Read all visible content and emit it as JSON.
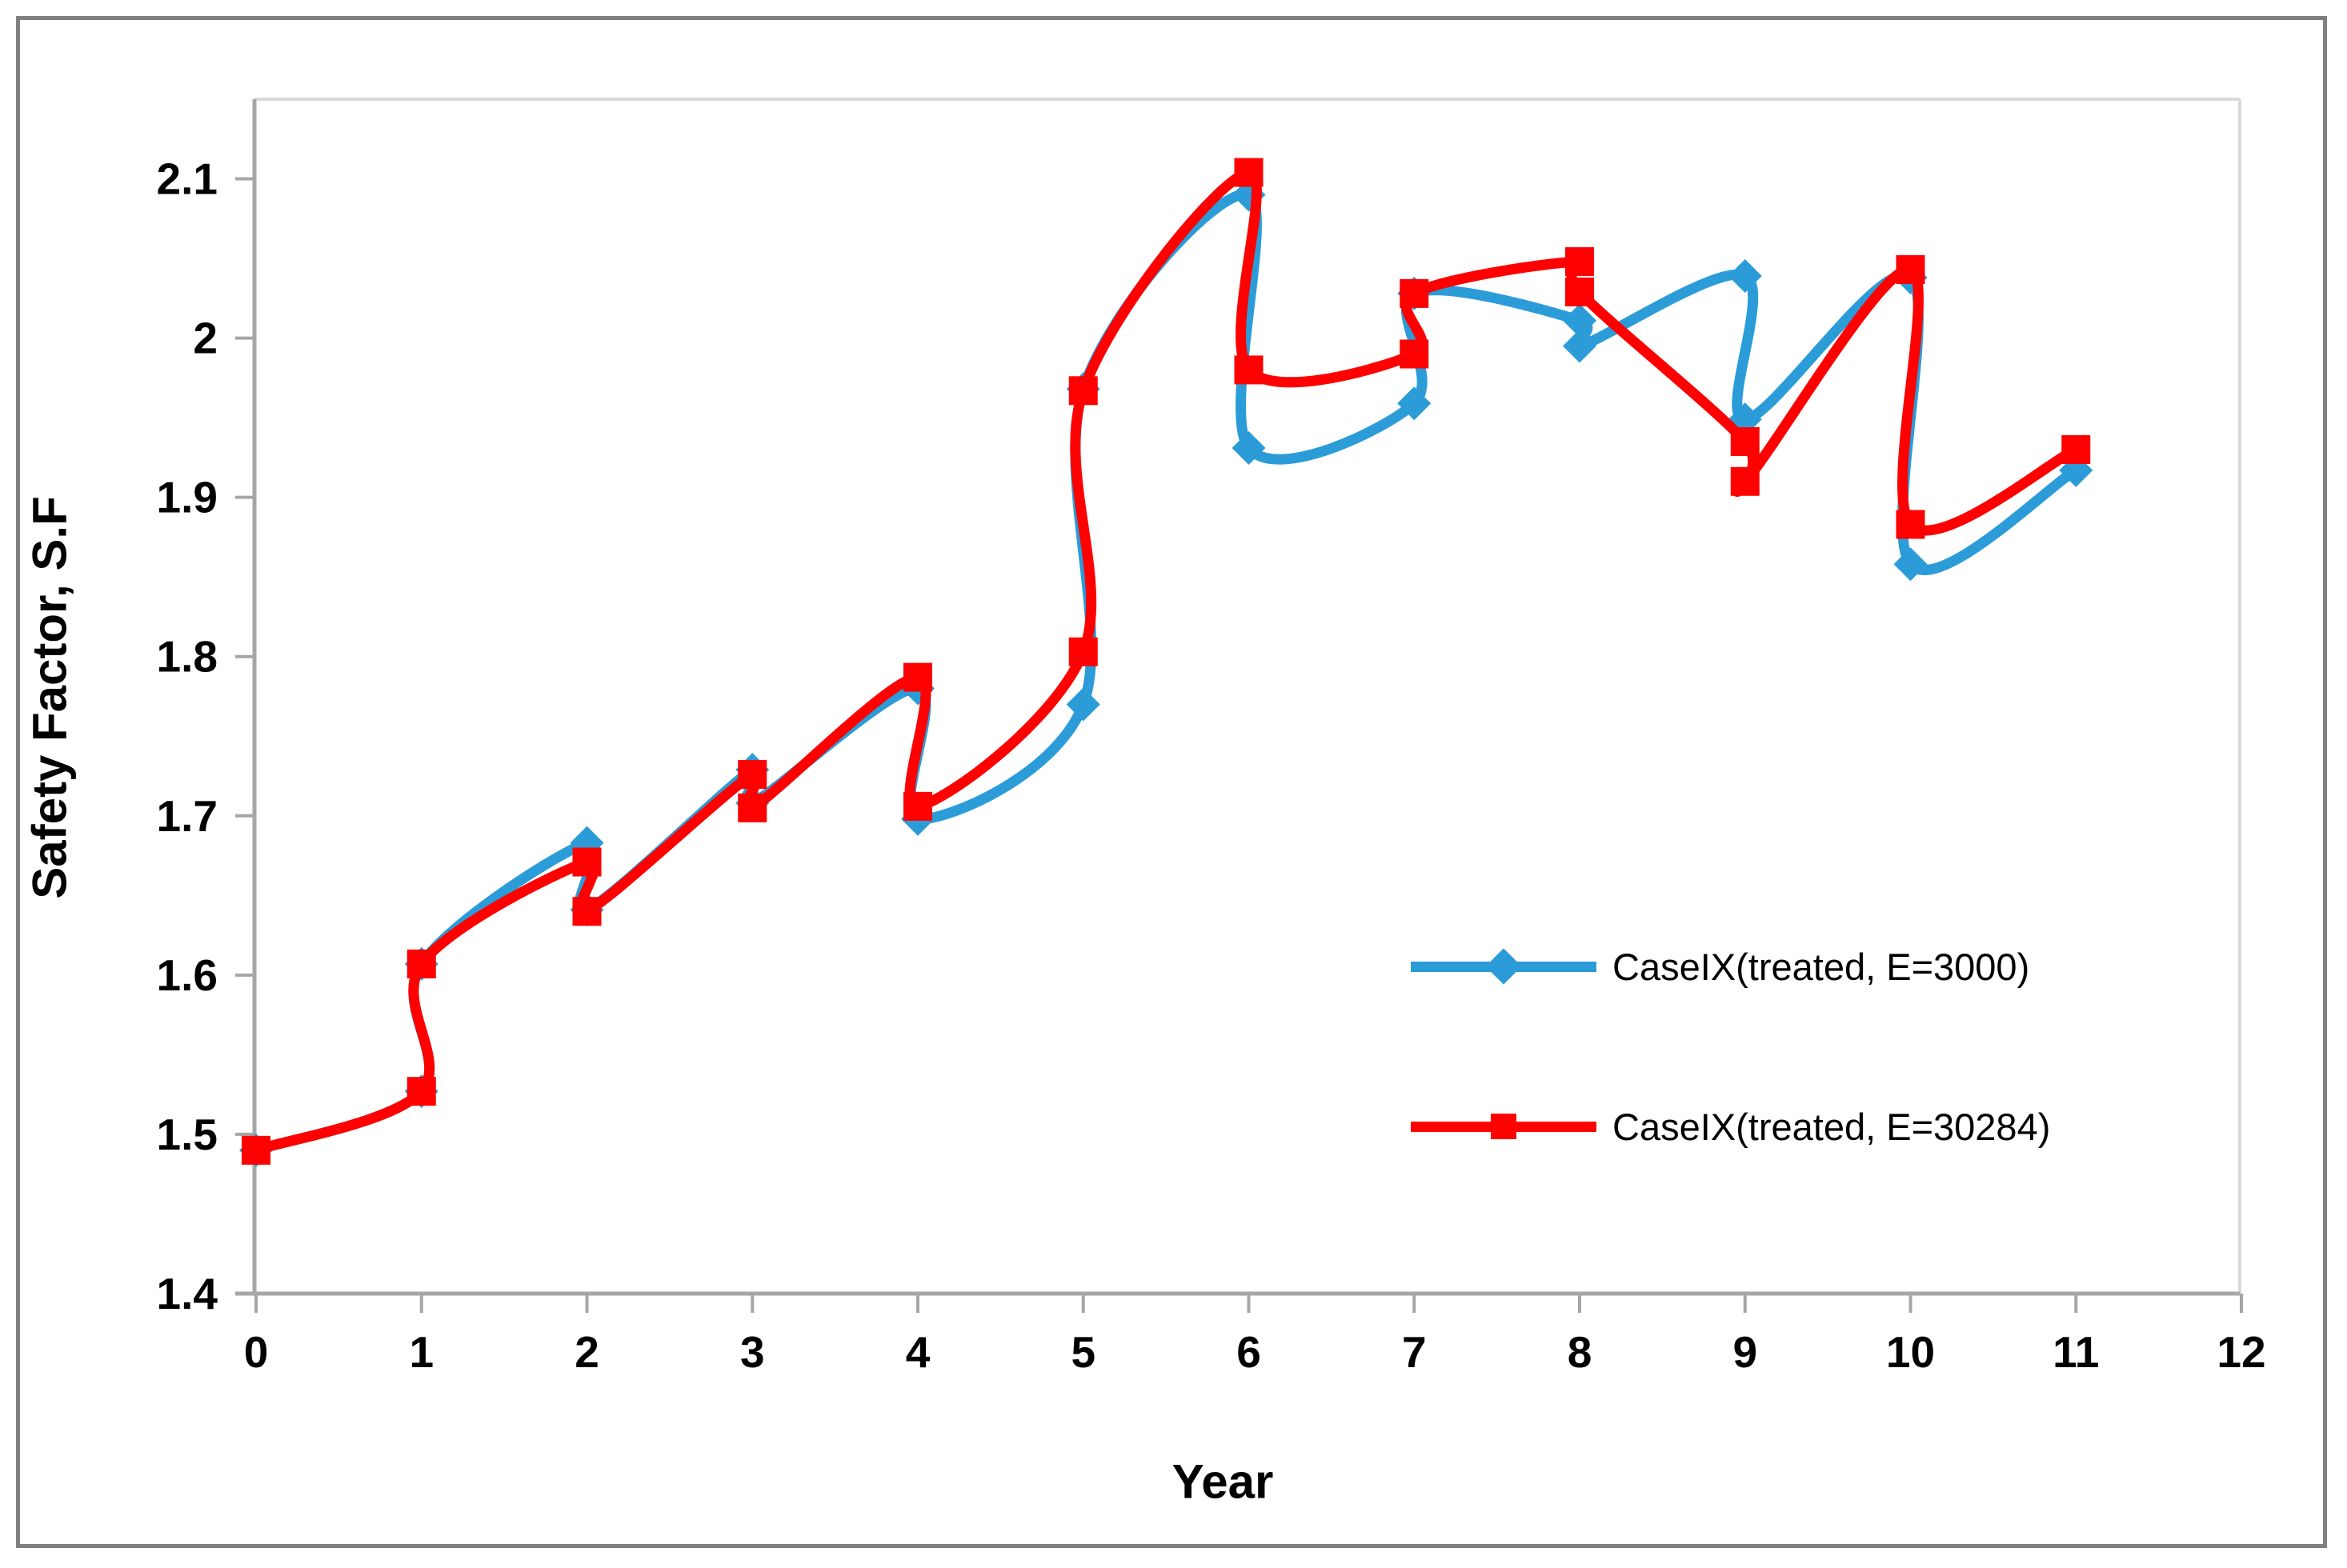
{
  "frame": {
    "border_color": "#808080"
  },
  "styles": {
    "axis_line_color": "#A6A6A6",
    "plot_border_color": "#D9D9D9",
    "tick_color": "#A6A6A6",
    "text_color": "#000000",
    "background": "#FFFFFF"
  },
  "chart_data": {
    "type": "line",
    "title": "",
    "xlabel": "Year",
    "ylabel": "Safety Factor, S.F",
    "xlim": [
      0,
      12
    ],
    "ylim": [
      1.4,
      2.15
    ],
    "grid": false,
    "legend_position": "inside-right",
    "x_ticks": [
      0,
      1,
      2,
      3,
      4,
      5,
      6,
      7,
      8,
      9,
      10,
      11,
      12
    ],
    "x_tick_labels": [
      "0",
      "1",
      "2",
      "3",
      "4",
      "5",
      "6",
      "7",
      "8",
      "9",
      "10",
      "11",
      "12"
    ],
    "y_ticks": [
      1.4,
      1.5,
      1.6,
      1.7,
      1.8,
      1.9,
      2.0,
      2.1
    ],
    "y_tick_labels": [
      "1.4",
      "1.5",
      "1.6",
      "1.7",
      "1.8",
      "1.9",
      "2",
      "2.1"
    ],
    "series": [
      {
        "name": "CaseIX(treated, E=3000)",
        "color": "#2B9CD8",
        "marker": "diamond",
        "smoothed": true,
        "points": [
          [
            0,
            1.49
          ],
          [
            1,
            1.527
          ],
          [
            1,
            1.607
          ],
          [
            2,
            1.683
          ],
          [
            2,
            1.641
          ],
          [
            3,
            1.729
          ],
          [
            3,
            1.708
          ],
          [
            4,
            1.78
          ],
          [
            4,
            1.698
          ],
          [
            5,
            1.77
          ],
          [
            5,
            1.968
          ],
          [
            6,
            2.09
          ],
          [
            6,
            1.931
          ],
          [
            7,
            1.959
          ],
          [
            7,
            2.028
          ],
          [
            8,
            2.011
          ],
          [
            8,
            1.995
          ],
          [
            9,
            2.039
          ],
          [
            9,
            1.949
          ],
          [
            10,
            2.038
          ],
          [
            10,
            1.858
          ],
          [
            11,
            1.917
          ]
        ]
      },
      {
        "name": "CaseIX(treated, E=30284)",
        "color": "#FF0000",
        "marker": "square",
        "smoothed": true,
        "points": [
          [
            0,
            1.49
          ],
          [
            1,
            1.527
          ],
          [
            1,
            1.607
          ],
          [
            2,
            1.671
          ],
          [
            2,
            1.64
          ],
          [
            3,
            1.726
          ],
          [
            3,
            1.705
          ],
          [
            4,
            1.787
          ],
          [
            4,
            1.706
          ],
          [
            5,
            1.803
          ],
          [
            5,
            1.967
          ],
          [
            6,
            2.104
          ],
          [
            6,
            1.98
          ],
          [
            7,
            1.99
          ],
          [
            7,
            2.028
          ],
          [
            8,
            2.048
          ],
          [
            8,
            2.029
          ],
          [
            9,
            1.935
          ],
          [
            9,
            1.91
          ],
          [
            10,
            2.043
          ],
          [
            10,
            1.883
          ],
          [
            11,
            1.93
          ]
        ]
      }
    ]
  }
}
